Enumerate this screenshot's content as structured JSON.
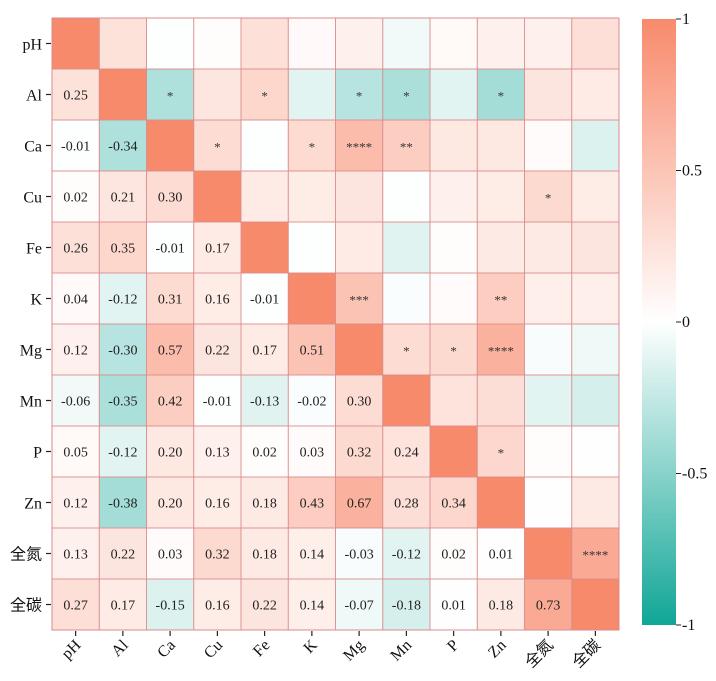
{
  "chart_data": {
    "type": "heatmap",
    "title": "",
    "xlabel": "",
    "ylabel": "",
    "labels": [
      "pH",
      "Al",
      "Ca",
      "Cu",
      "Fe",
      "K",
      "Mg",
      "Mn",
      "P",
      "Zn",
      "全氮",
      "全碳"
    ],
    "lower_triangle_shows": "correlation coefficient",
    "upper_triangle_shows": "significance stars",
    "matrix": [
      [
        1,
        0.25,
        -0.01,
        0.02,
        0.26,
        0.04,
        0.12,
        -0.06,
        0.05,
        0.12,
        0.13,
        0.27
      ],
      [
        0.25,
        1,
        -0.34,
        0.21,
        0.35,
        -0.12,
        -0.3,
        -0.35,
        -0.12,
        -0.38,
        0.22,
        0.17
      ],
      [
        -0.01,
        -0.34,
        1,
        0.3,
        -0.01,
        0.31,
        0.57,
        0.42,
        0.2,
        0.2,
        0.03,
        -0.15
      ],
      [
        0.02,
        0.21,
        0.3,
        1,
        0.17,
        0.16,
        0.22,
        -0.01,
        0.13,
        0.16,
        0.32,
        0.16
      ],
      [
        0.26,
        0.35,
        -0.01,
        0.17,
        1,
        -0.01,
        0.17,
        -0.13,
        0.02,
        0.18,
        0.18,
        0.22
      ],
      [
        0.04,
        -0.12,
        0.31,
        0.16,
        -0.01,
        1,
        0.51,
        -0.02,
        0.03,
        0.43,
        0.14,
        0.14
      ],
      [
        0.12,
        -0.3,
        0.57,
        0.22,
        0.17,
        0.51,
        1,
        0.3,
        0.32,
        0.67,
        -0.03,
        -0.07
      ],
      [
        -0.06,
        -0.35,
        0.42,
        -0.01,
        -0.13,
        -0.02,
        0.3,
        1,
        0.24,
        0.28,
        -0.12,
        -0.18
      ],
      [
        0.05,
        -0.12,
        0.2,
        0.13,
        0.02,
        0.03,
        0.32,
        0.24,
        1,
        0.34,
        0.02,
        0.01
      ],
      [
        0.12,
        -0.38,
        0.2,
        0.16,
        0.18,
        0.43,
        0.67,
        0.28,
        0.34,
        1,
        0.01,
        0.18
      ],
      [
        0.13,
        0.22,
        0.03,
        0.32,
        0.18,
        0.14,
        -0.03,
        -0.12,
        0.02,
        0.01,
        1,
        0.73
      ],
      [
        0.27,
        0.17,
        -0.15,
        0.16,
        0.22,
        0.14,
        -0.07,
        -0.18,
        0.01,
        0.18,
        0.73,
        1
      ]
    ],
    "significance": [
      {
        "row": "Al",
        "col": "Ca",
        "stars": "*"
      },
      {
        "row": "Al",
        "col": "Fe",
        "stars": "*"
      },
      {
        "row": "Al",
        "col": "Mg",
        "stars": "*"
      },
      {
        "row": "Al",
        "col": "Mn",
        "stars": "*"
      },
      {
        "row": "Al",
        "col": "Zn",
        "stars": "*"
      },
      {
        "row": "Ca",
        "col": "Cu",
        "stars": "*"
      },
      {
        "row": "Ca",
        "col": "K",
        "stars": "*"
      },
      {
        "row": "Ca",
        "col": "Mg",
        "stars": "****"
      },
      {
        "row": "Ca",
        "col": "Mn",
        "stars": "**"
      },
      {
        "row": "Cu",
        "col": "全氮",
        "stars": "*"
      },
      {
        "row": "K",
        "col": "Mg",
        "stars": "***"
      },
      {
        "row": "K",
        "col": "Zn",
        "stars": "**"
      },
      {
        "row": "Mg",
        "col": "Mn",
        "stars": "*"
      },
      {
        "row": "Mg",
        "col": "P",
        "stars": "*"
      },
      {
        "row": "Mg",
        "col": "Zn",
        "stars": "****"
      },
      {
        "row": "P",
        "col": "Zn",
        "stars": "*"
      },
      {
        "row": "全氮",
        "col": "全碳",
        "stars": "****"
      }
    ],
    "colorbar": {
      "range": [
        -1,
        1
      ],
      "ticks": [
        1,
        0.5,
        0,
        -0.5,
        -1
      ],
      "tick_labels": [
        "1",
        "0.5",
        "0",
        "-0.5",
        "-1"
      ],
      "colors": {
        "high": "#f88a6c",
        "mid": "#ffffff",
        "low": "#10a696"
      }
    },
    "legend": "right",
    "grid": true,
    "grid_color": "#d98c8c"
  }
}
